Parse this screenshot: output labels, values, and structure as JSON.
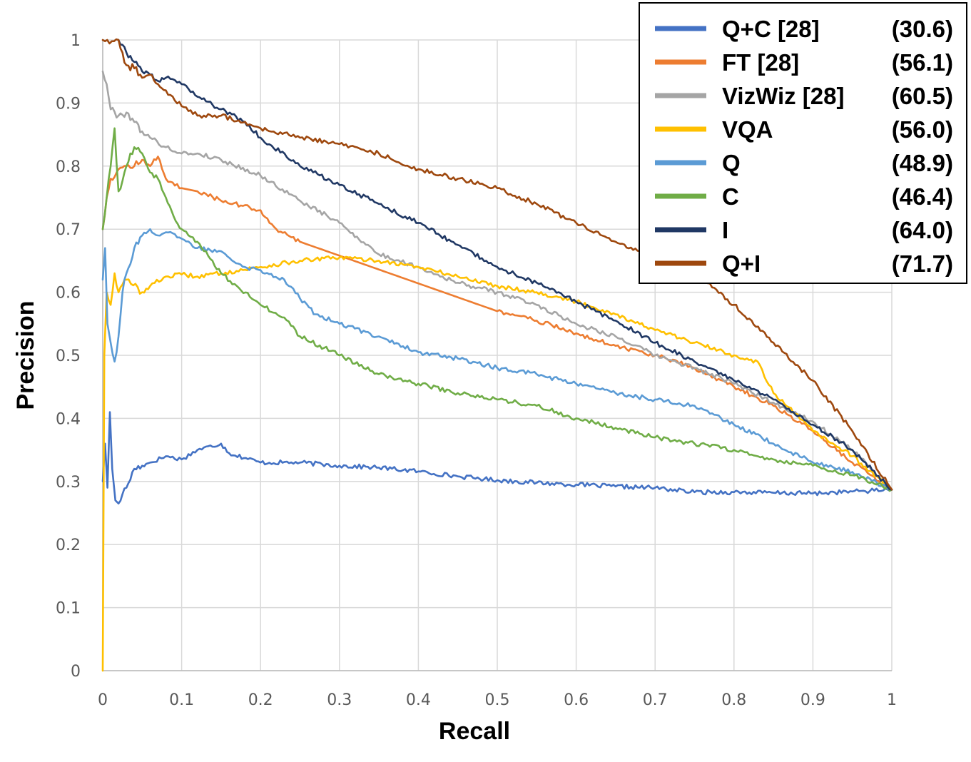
{
  "chart_data": {
    "type": "line",
    "title": "",
    "xlabel": "Recall",
    "ylabel": "Precision",
    "xlim": [
      0,
      1
    ],
    "ylim": [
      0,
      1
    ],
    "grid": true,
    "legend_position": "top-right",
    "x_ticks": [
      "0",
      "0.1",
      "0.2",
      "0.3",
      "0.4",
      "0.5",
      "0.6",
      "0.7",
      "0.8",
      "0.9",
      "1"
    ],
    "y_ticks": [
      "0",
      "0.1",
      "0.2",
      "0.3",
      "0.4",
      "0.5",
      "0.6",
      "0.7",
      "0.8",
      "0.9",
      "1"
    ],
    "series": [
      {
        "name": "Q+C [28]",
        "score": "(30.6)",
        "color": "#4472c4",
        "points": [
          [
            0,
            0.3
          ],
          [
            0.003,
            0.36
          ],
          [
            0.006,
            0.29
          ],
          [
            0.009,
            0.41
          ],
          [
            0.012,
            0.32
          ],
          [
            0.016,
            0.27
          ],
          [
            0.02,
            0.265
          ],
          [
            0.025,
            0.28
          ],
          [
            0.03,
            0.29
          ],
          [
            0.04,
            0.32
          ],
          [
            0.05,
            0.325
          ],
          [
            0.06,
            0.33
          ],
          [
            0.08,
            0.34
          ],
          [
            0.1,
            0.335
          ],
          [
            0.12,
            0.35
          ],
          [
            0.15,
            0.36
          ],
          [
            0.16,
            0.345
          ],
          [
            0.2,
            0.33
          ],
          [
            0.25,
            0.33
          ],
          [
            0.3,
            0.325
          ],
          [
            0.35,
            0.322
          ],
          [
            0.4,
            0.316
          ],
          [
            0.45,
            0.308
          ],
          [
            0.5,
            0.302
          ],
          [
            0.55,
            0.298
          ],
          [
            0.6,
            0.295
          ],
          [
            0.65,
            0.292
          ],
          [
            0.7,
            0.29
          ],
          [
            0.75,
            0.283
          ],
          [
            0.8,
            0.283
          ],
          [
            0.85,
            0.282
          ],
          [
            0.9,
            0.281
          ],
          [
            0.95,
            0.284
          ],
          [
            1,
            0.287
          ]
        ]
      },
      {
        "name": "FT [28]",
        "score": "(56.1)",
        "color": "#ed7d31",
        "points": [
          [
            0,
            0.7
          ],
          [
            0.005,
            0.75
          ],
          [
            0.01,
            0.78
          ],
          [
            0.02,
            0.795
          ],
          [
            0.03,
            0.8
          ],
          [
            0.04,
            0.8
          ],
          [
            0.05,
            0.81
          ],
          [
            0.06,
            0.8
          ],
          [
            0.07,
            0.815
          ],
          [
            0.08,
            0.78
          ],
          [
            0.1,
            0.765
          ],
          [
            0.12,
            0.76
          ],
          [
            0.15,
            0.745
          ],
          [
            0.2,
            0.73
          ],
          [
            0.22,
            0.7
          ],
          [
            0.25,
            0.68
          ],
          [
            0.5,
            0.57
          ],
          [
            0.55,
            0.555
          ],
          [
            0.6,
            0.535
          ],
          [
            0.65,
            0.515
          ],
          [
            0.7,
            0.5
          ],
          [
            0.75,
            0.48
          ],
          [
            0.8,
            0.45
          ],
          [
            0.85,
            0.42
          ],
          [
            0.9,
            0.38
          ],
          [
            0.95,
            0.33
          ],
          [
            1,
            0.287
          ]
        ]
      },
      {
        "name": "VizWiz [28]",
        "score": "(60.5)",
        "color": "#a5a5a5",
        "points": [
          [
            0,
            0.95
          ],
          [
            0.005,
            0.93
          ],
          [
            0.01,
            0.89
          ],
          [
            0.02,
            0.88
          ],
          [
            0.03,
            0.885
          ],
          [
            0.04,
            0.87
          ],
          [
            0.05,
            0.855
          ],
          [
            0.06,
            0.845
          ],
          [
            0.08,
            0.83
          ],
          [
            0.1,
            0.82
          ],
          [
            0.12,
            0.82
          ],
          [
            0.15,
            0.81
          ],
          [
            0.2,
            0.785
          ],
          [
            0.25,
            0.745
          ],
          [
            0.3,
            0.71
          ],
          [
            0.35,
            0.66
          ],
          [
            0.4,
            0.64
          ],
          [
            0.45,
            0.615
          ],
          [
            0.5,
            0.6
          ],
          [
            0.55,
            0.58
          ],
          [
            0.6,
            0.55
          ],
          [
            0.65,
            0.53
          ],
          [
            0.7,
            0.5
          ],
          [
            0.75,
            0.48
          ],
          [
            0.8,
            0.455
          ],
          [
            0.85,
            0.425
          ],
          [
            0.9,
            0.395
          ],
          [
            0.95,
            0.35
          ],
          [
            1,
            0.287
          ]
        ]
      },
      {
        "name": "VQA",
        "score": "(56.0)",
        "color": "#ffc000",
        "points": [
          [
            0,
            0
          ],
          [
            0.002,
            0.5
          ],
          [
            0.005,
            0.6
          ],
          [
            0.01,
            0.58
          ],
          [
            0.015,
            0.63
          ],
          [
            0.02,
            0.6
          ],
          [
            0.03,
            0.62
          ],
          [
            0.05,
            0.6
          ],
          [
            0.06,
            0.61
          ],
          [
            0.08,
            0.625
          ],
          [
            0.1,
            0.628
          ],
          [
            0.12,
            0.625
          ],
          [
            0.15,
            0.63
          ],
          [
            0.2,
            0.64
          ],
          [
            0.25,
            0.65
          ],
          [
            0.3,
            0.655
          ],
          [
            0.35,
            0.65
          ],
          [
            0.4,
            0.64
          ],
          [
            0.45,
            0.625
          ],
          [
            0.5,
            0.61
          ],
          [
            0.55,
            0.6
          ],
          [
            0.6,
            0.585
          ],
          [
            0.65,
            0.565
          ],
          [
            0.7,
            0.54
          ],
          [
            0.75,
            0.52
          ],
          [
            0.8,
            0.5
          ],
          [
            0.83,
            0.49
          ],
          [
            0.85,
            0.44
          ],
          [
            0.9,
            0.38
          ],
          [
            0.95,
            0.34
          ],
          [
            1,
            0.287
          ]
        ]
      },
      {
        "name": "Q",
        "score": "(48.9)",
        "color": "#5b9bd5",
        "points": [
          [
            0,
            0.62
          ],
          [
            0.003,
            0.67
          ],
          [
            0.006,
            0.55
          ],
          [
            0.01,
            0.52
          ],
          [
            0.015,
            0.49
          ],
          [
            0.02,
            0.53
          ],
          [
            0.025,
            0.6
          ],
          [
            0.03,
            0.63
          ],
          [
            0.04,
            0.67
          ],
          [
            0.05,
            0.69
          ],
          [
            0.06,
            0.7
          ],
          [
            0.07,
            0.69
          ],
          [
            0.08,
            0.695
          ],
          [
            0.1,
            0.685
          ],
          [
            0.12,
            0.67
          ],
          [
            0.15,
            0.665
          ],
          [
            0.18,
            0.64
          ],
          [
            0.2,
            0.635
          ],
          [
            0.23,
            0.62
          ],
          [
            0.25,
            0.59
          ],
          [
            0.27,
            0.565
          ],
          [
            0.3,
            0.55
          ],
          [
            0.35,
            0.53
          ],
          [
            0.4,
            0.505
          ],
          [
            0.45,
            0.495
          ],
          [
            0.5,
            0.48
          ],
          [
            0.55,
            0.47
          ],
          [
            0.6,
            0.455
          ],
          [
            0.65,
            0.44
          ],
          [
            0.7,
            0.43
          ],
          [
            0.75,
            0.42
          ],
          [
            0.8,
            0.39
          ],
          [
            0.85,
            0.36
          ],
          [
            0.9,
            0.33
          ],
          [
            0.95,
            0.315
          ],
          [
            1,
            0.287
          ]
        ]
      },
      {
        "name": "C",
        "score": "(46.4)",
        "color": "#70ad47",
        "points": [
          [
            0,
            0.7
          ],
          [
            0.005,
            0.75
          ],
          [
            0.01,
            0.8
          ],
          [
            0.015,
            0.86
          ],
          [
            0.02,
            0.76
          ],
          [
            0.03,
            0.8
          ],
          [
            0.035,
            0.82
          ],
          [
            0.04,
            0.83
          ],
          [
            0.05,
            0.82
          ],
          [
            0.06,
            0.79
          ],
          [
            0.07,
            0.78
          ],
          [
            0.08,
            0.75
          ],
          [
            0.09,
            0.72
          ],
          [
            0.1,
            0.7
          ],
          [
            0.12,
            0.68
          ],
          [
            0.15,
            0.63
          ],
          [
            0.17,
            0.61
          ],
          [
            0.2,
            0.58
          ],
          [
            0.23,
            0.56
          ],
          [
            0.25,
            0.53
          ],
          [
            0.3,
            0.5
          ],
          [
            0.35,
            0.47
          ],
          [
            0.4,
            0.455
          ],
          [
            0.45,
            0.44
          ],
          [
            0.5,
            0.43
          ],
          [
            0.55,
            0.42
          ],
          [
            0.6,
            0.4
          ],
          [
            0.65,
            0.385
          ],
          [
            0.7,
            0.37
          ],
          [
            0.75,
            0.36
          ],
          [
            0.8,
            0.35
          ],
          [
            0.85,
            0.335
          ],
          [
            0.9,
            0.325
          ],
          [
            0.95,
            0.31
          ],
          [
            1,
            0.287
          ]
        ]
      },
      {
        "name": "I",
        "score": "(64.0)",
        "color": "#203864",
        "points": [
          [
            0.02,
            1
          ],
          [
            0.03,
            0.98
          ],
          [
            0.04,
            0.965
          ],
          [
            0.05,
            0.95
          ],
          [
            0.06,
            0.945
          ],
          [
            0.07,
            0.935
          ],
          [
            0.08,
            0.94
          ],
          [
            0.1,
            0.93
          ],
          [
            0.12,
            0.91
          ],
          [
            0.15,
            0.89
          ],
          [
            0.18,
            0.87
          ],
          [
            0.2,
            0.845
          ],
          [
            0.25,
            0.8
          ],
          [
            0.3,
            0.77
          ],
          [
            0.35,
            0.74
          ],
          [
            0.4,
            0.71
          ],
          [
            0.45,
            0.675
          ],
          [
            0.5,
            0.64
          ],
          [
            0.55,
            0.615
          ],
          [
            0.6,
            0.585
          ],
          [
            0.65,
            0.555
          ],
          [
            0.7,
            0.52
          ],
          [
            0.75,
            0.49
          ],
          [
            0.8,
            0.46
          ],
          [
            0.85,
            0.43
          ],
          [
            0.9,
            0.39
          ],
          [
            0.95,
            0.35
          ],
          [
            1,
            0.287
          ]
        ]
      },
      {
        "name": "Q+I",
        "score": "(71.7)",
        "color": "#9e480e",
        "points": [
          [
            0,
            1
          ],
          [
            0.02,
            1
          ],
          [
            0.025,
            0.98
          ],
          [
            0.03,
            0.96
          ],
          [
            0.04,
            0.955
          ],
          [
            0.05,
            0.94
          ],
          [
            0.06,
            0.945
          ],
          [
            0.07,
            0.93
          ],
          [
            0.08,
            0.92
          ],
          [
            0.1,
            0.895
          ],
          [
            0.12,
            0.88
          ],
          [
            0.15,
            0.88
          ],
          [
            0.2,
            0.86
          ],
          [
            0.25,
            0.845
          ],
          [
            0.3,
            0.835
          ],
          [
            0.35,
            0.82
          ],
          [
            0.4,
            0.795
          ],
          [
            0.45,
            0.78
          ],
          [
            0.5,
            0.765
          ],
          [
            0.55,
            0.74
          ],
          [
            0.6,
            0.71
          ],
          [
            0.65,
            0.68
          ],
          [
            0.7,
            0.655
          ],
          [
            0.75,
            0.63
          ],
          [
            0.8,
            0.58
          ],
          [
            0.85,
            0.52
          ],
          [
            0.9,
            0.46
          ],
          [
            0.95,
            0.38
          ],
          [
            1,
            0.287
          ]
        ]
      }
    ]
  }
}
